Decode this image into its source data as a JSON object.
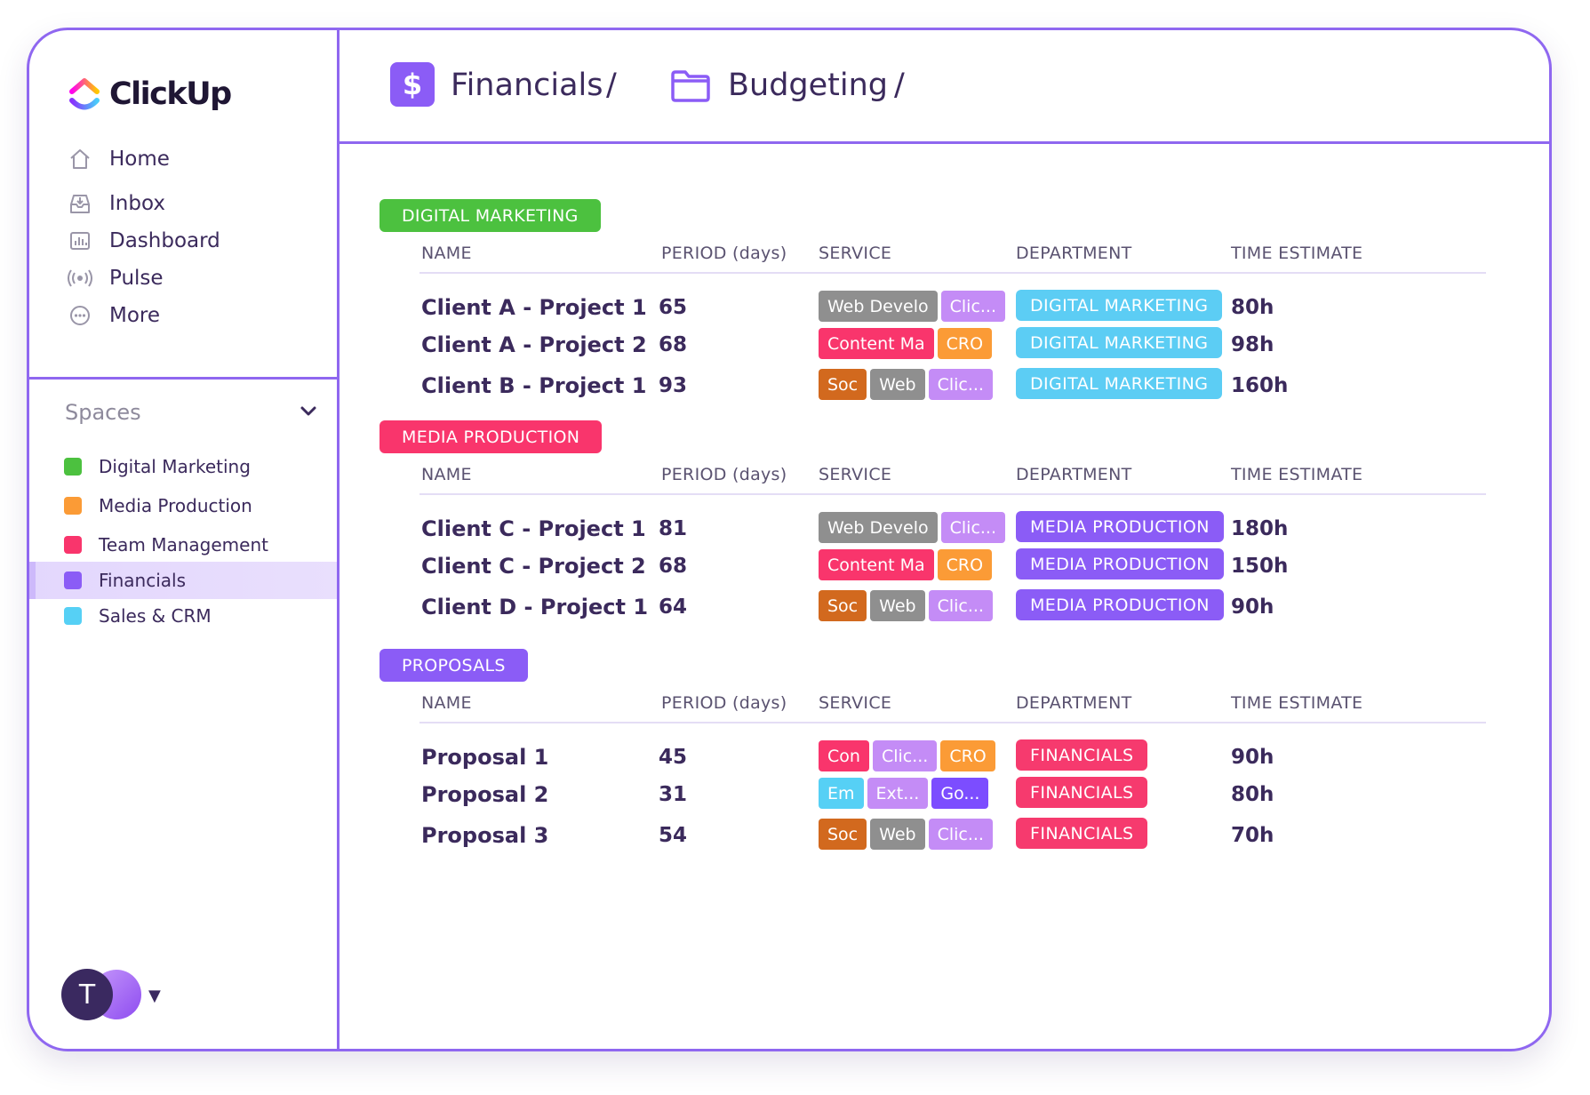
{
  "app": {
    "logo_text": "ClickUp"
  },
  "sidebar": {
    "nav": [
      {
        "label": "Home",
        "icon": "home-icon"
      },
      {
        "label": "Inbox",
        "icon": "inbox-icon"
      },
      {
        "label": "Dashboard",
        "icon": "dashboard-icon"
      },
      {
        "label": "Pulse",
        "icon": "pulse-icon"
      },
      {
        "label": "More",
        "icon": "more-icon"
      }
    ],
    "spaces_label": "Spaces",
    "spaces": [
      {
        "label": "Digital Marketing",
        "color": "#4cc13f"
      },
      {
        "label": "Media Production",
        "color": "#fb9b36"
      },
      {
        "label": "Team Management",
        "color": "#f9356c"
      },
      {
        "label": "Financials",
        "color": "#8b5cf6",
        "active": true
      },
      {
        "label": "Sales & CRM",
        "color": "#56d0f5"
      }
    ],
    "avatar_initial": "T"
  },
  "header": {
    "breadcrumb": [
      "Financials",
      "Budgeting"
    ],
    "separator": "/"
  },
  "columns": {
    "name": "NAME",
    "period": "PERIOD (days)",
    "service": "SERVICE",
    "department": "DEPARTMENT",
    "time": "TIME ESTIMATE"
  },
  "colors": {
    "accent": "#8f67f0",
    "digital_marketing": "#4cc13f",
    "media_production": "#f9356c",
    "proposals": "#8b5cf6",
    "dept_digital": "#5ccdf4",
    "dept_media": "#8b5cf6",
    "dept_financials": "#f63a6e"
  },
  "groups": [
    {
      "tag": "DIGITAL MARKETING",
      "rows": [
        {
          "name": "Client A - Project 1",
          "period": "65",
          "services": [
            "Web Develo",
            "Clic..."
          ],
          "department": "DIGITAL MARKETING",
          "time": "80h"
        },
        {
          "name": "Client A - Project 2",
          "period": "68",
          "services": [
            "Content Ma",
            "CRO"
          ],
          "department": "DIGITAL MARKETING",
          "time": "98h"
        },
        {
          "name": "Client B - Project 1",
          "period": "93",
          "services": [
            "Soc",
            "Web",
            "Clic..."
          ],
          "department": "DIGITAL MARKETING",
          "time": "160h"
        }
      ]
    },
    {
      "tag": "MEDIA PRODUCTION",
      "rows": [
        {
          "name": "Client C - Project 1",
          "period": "81",
          "services": [
            "Web Develo",
            "Clic..."
          ],
          "department": "MEDIA PRODUCTION",
          "time": "180h"
        },
        {
          "name": "Client C - Project 2",
          "period": "68",
          "services": [
            "Content Ma",
            "CRO"
          ],
          "department": "MEDIA PRODUCTION",
          "time": "150h"
        },
        {
          "name": "Client D - Project 1",
          "period": "64",
          "services": [
            "Soc",
            "Web",
            "Clic..."
          ],
          "department": "MEDIA PRODUCTION",
          "time": "90h"
        }
      ]
    },
    {
      "tag": "PROPOSALS",
      "rows": [
        {
          "name": "Proposal 1",
          "period": "45",
          "services": [
            "Con",
            "Clic...",
            "CRO"
          ],
          "department": "FINANCIALS",
          "time": "90h"
        },
        {
          "name": "Proposal 2",
          "period": "31",
          "services": [
            "Em",
            "Ext...",
            "Go..."
          ],
          "department": "FINANCIALS",
          "time": "80h"
        },
        {
          "name": "Proposal 3",
          "period": "54",
          "services": [
            "Soc",
            "Web",
            "Clic..."
          ],
          "department": "FINANCIALS",
          "time": "70h"
        }
      ]
    }
  ]
}
